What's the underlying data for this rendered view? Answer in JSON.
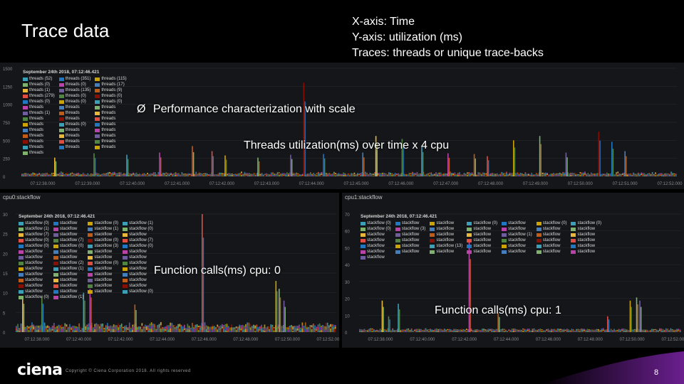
{
  "slide": {
    "title": "Trace data",
    "axis_notes": [
      "X-axis: Time",
      "Y-axis: utilization (ms)",
      "Traces: threads or unique trace-backs"
    ],
    "overlay_bullet_glyph": "Ø",
    "overlay_bullet": "Performance characterization with scale",
    "overlay_main_caption": "Threads utilization(ms) over time x 4 cpu",
    "overlay_cpu0_caption": "Function calls(ms) cpu: 0",
    "overlay_cpu1_caption": "Function calls(ms) cpu: 1",
    "copyright": "Copyright © Ciena Corporation 2018. All rights reserved",
    "logo": "ciena",
    "page_number": "8"
  },
  "colors": {
    "background": "#000000",
    "panel": "#141619",
    "grid": "#2a2d31",
    "accent_logo_gradient": "#5a1a7a",
    "series": [
      "#3b9fb8",
      "#7eb26d",
      "#eab839",
      "#e24d42",
      "#1f78c1",
      "#ba43a9",
      "#705da0",
      "#508642",
      "#cca300",
      "#447ebc",
      "#c15c17",
      "#890f02"
    ]
  },
  "chart_data": [
    {
      "type": "bar",
      "panel_title": "",
      "tooltip_time": "September 24th 2018, 07:12:46.421",
      "y_ticks": [
        "0",
        "250",
        "500",
        "750",
        "1000",
        "1250",
        "1500"
      ],
      "ylim": [
        0,
        1500
      ],
      "x_ticks": [
        "07:12:38.000",
        "07:12:39.000",
        "07:12:40.000",
        "07:12:41.000",
        "07:12:42.000",
        "07:12:43.000",
        "07:12:44.000",
        "07:12:45.000",
        "07:12:46.000",
        "07:12:47.000",
        "07:12:48.000",
        "07:12:49.000",
        "07:12:50.000",
        "07:12:51.000",
        "07:12:52.000"
      ],
      "legend_columns": [
        [
          "threads (52)",
          "threads (0)",
          "threads (1)",
          "threads (279)",
          "threads (0)",
          "threads",
          "threads (1)",
          "threads",
          "threads",
          "threads",
          "threads",
          "threads",
          "threads",
          "threads"
        ],
        [
          "threads (351)",
          "threads (0)",
          "threads (135)",
          "threads (0)",
          "threads (0)",
          "threads",
          "threads",
          "threads",
          "threads (0)",
          "threads",
          "threads",
          "threads",
          "threads"
        ],
        [
          "threads (115)",
          "threads (17)",
          "threads (9)",
          "threads (0)",
          "threads (0)",
          "threads",
          "threads",
          "threads",
          "threads",
          "threads",
          "threads",
          "threads",
          "threads"
        ]
      ],
      "spikes": [
        {
          "x": 0.05,
          "value": 260
        },
        {
          "x": 0.11,
          "value": 320
        },
        {
          "x": 0.16,
          "value": 300
        },
        {
          "x": 0.21,
          "value": 330
        },
        {
          "x": 0.26,
          "value": 420
        },
        {
          "x": 0.29,
          "value": 350
        },
        {
          "x": 0.31,
          "value": 290
        },
        {
          "x": 0.36,
          "value": 260
        },
        {
          "x": 0.41,
          "value": 300
        },
        {
          "x": 0.43,
          "value": 1300
        },
        {
          "x": 0.46,
          "value": 310
        },
        {
          "x": 0.52,
          "value": 330
        },
        {
          "x": 0.54,
          "value": 560
        },
        {
          "x": 0.58,
          "value": 520
        },
        {
          "x": 0.61,
          "value": 420
        },
        {
          "x": 0.65,
          "value": 320
        },
        {
          "x": 0.69,
          "value": 310
        },
        {
          "x": 0.71,
          "value": 280
        },
        {
          "x": 0.75,
          "value": 500
        },
        {
          "x": 0.79,
          "value": 560
        },
        {
          "x": 0.83,
          "value": 330
        },
        {
          "x": 0.88,
          "value": 620
        },
        {
          "x": 0.9,
          "value": 480
        },
        {
          "x": 0.92,
          "value": 350
        }
      ]
    },
    {
      "type": "bar",
      "panel_title": "cpu0:stackflow",
      "tooltip_time": "September 24th 2018, 07:12:46.421",
      "y_ticks": [
        "0",
        "5",
        "10",
        "15",
        "20",
        "25",
        "30"
      ],
      "ylim": [
        0,
        30
      ],
      "x_ticks": [
        "07:12:38.000",
        "07:12:40.000",
        "07:12:42.000",
        "07:12:44.000",
        "07:12:46.000",
        "07:12:48.000",
        "07:12:50.000",
        "07:12:52.000"
      ],
      "legend_columns": [
        [
          "stackflow (0)",
          "stackflow (1)",
          "stackflow (7)",
          "stackflow (0)",
          "stackflow (0)",
          "stackflow",
          "stackflow",
          "stackflow",
          "stackflow",
          "stackflow",
          "stackflow",
          "stackflow",
          "stackflow",
          "stackflow (0)"
        ],
        [
          "stackflow",
          "stackflow",
          "stackflow",
          "stackflow (7)",
          "stackflow (0)",
          "stackflow",
          "stackflow",
          "stackflow (2)",
          "stackflow (1)",
          "stackflow",
          "stackflow",
          "stackflow",
          "stackflow",
          "stackflow (1)"
        ],
        [
          "stackflow (0)",
          "stackflow (1)",
          "stackflow",
          "stackflow (0)",
          "stackflow (3)",
          "stackflow",
          "stackflow",
          "stackflow (0)",
          "stackflow",
          "stackflow",
          "stackflow",
          "stackflow",
          "stackflow"
        ],
        [
          "stackflow (1)",
          "stackflow (0)",
          "stackflow",
          "stackflow (7)",
          "stackflow (0)",
          "stackflow",
          "stackflow",
          "stackflow",
          "stackflow",
          "stackflow",
          "stackflow",
          "stackflow",
          "stackflow (0)"
        ]
      ],
      "spikes": [
        {
          "x": 0.02,
          "value": 9
        },
        {
          "x": 0.08,
          "value": 9
        },
        {
          "x": 0.21,
          "value": 10
        },
        {
          "x": 0.23,
          "value": 11
        },
        {
          "x": 0.37,
          "value": 7
        },
        {
          "x": 0.58,
          "value": 30
        },
        {
          "x": 0.81,
          "value": 13
        },
        {
          "x": 0.82,
          "value": 11
        },
        {
          "x": 0.835,
          "value": 8
        }
      ]
    },
    {
      "type": "bar",
      "panel_title": "cpu1:stackflow",
      "tooltip_time": "September 24th 2018, 07:12:46.421",
      "y_ticks": [
        "0",
        "10",
        "20",
        "30",
        "40",
        "50",
        "60",
        "70"
      ],
      "ylim": [
        0,
        75
      ],
      "x_ticks": [
        "07:12:38.000",
        "07:12:40.000",
        "07:12:42.000",
        "07:12:44.000",
        "07:12:46.000",
        "07:12:48.000",
        "07:12:50.000",
        "07:12:52.000"
      ],
      "legend_columns": [
        [
          "stackflow (0)",
          "stackflow (0)",
          "stackflow",
          "stackflow",
          "stackflow",
          "stackflow",
          "stackflow"
        ],
        [
          "stackflow",
          "stackflow (3)",
          "stackflow",
          "stackflow",
          "stackflow",
          "stackflow"
        ],
        [
          "stackflow",
          "stackflow",
          "stackflow",
          "stackflow",
          "stackflow (13)",
          "stackflow"
        ],
        [
          "stackflow (0)",
          "stackflow",
          "stackflow",
          "stackflow",
          "stackflow",
          "stackflow"
        ],
        [
          "stackflow",
          "stackflow",
          "stackflow (1)",
          "stackflow",
          "stackflow",
          "stackflow"
        ],
        [
          "stackflow (0)",
          "stackflow",
          "stackflow",
          "stackflow",
          "stackflow",
          "stackflow"
        ],
        [
          "stackflow (0)",
          "stackflow",
          "stackflow",
          "stackflow",
          "stackflow",
          "stackflow"
        ]
      ],
      "spikes": [
        {
          "x": 0.07,
          "value": 20
        },
        {
          "x": 0.09,
          "value": 10
        },
        {
          "x": 0.12,
          "value": 18
        },
        {
          "x": 0.34,
          "value": 58
        },
        {
          "x": 0.43,
          "value": 12
        },
        {
          "x": 0.77,
          "value": 10
        },
        {
          "x": 0.84,
          "value": 20
        },
        {
          "x": 0.86,
          "value": 22
        },
        {
          "x": 0.87,
          "value": 20
        }
      ]
    }
  ]
}
